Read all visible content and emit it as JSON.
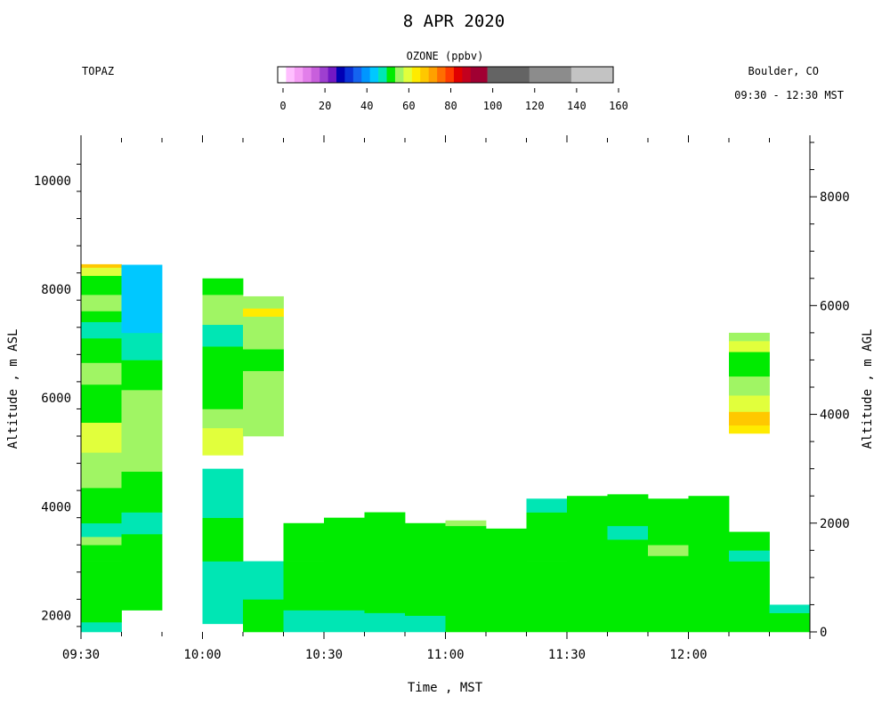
{
  "chart_data": {
    "type": "heatmap",
    "title": "8 APR 2020",
    "instrument": "TOPAZ",
    "location": "Boulder, CO",
    "time_range_label": "09:30 - 12:30 MST",
    "colorbar": {
      "label": "OZONE (ppbv)",
      "range": [
        0,
        160
      ],
      "tick_values": [
        0,
        20,
        40,
        60,
        80,
        100,
        120,
        140,
        160
      ],
      "tick_labels": [
        "0",
        "20",
        "40",
        "60",
        "80",
        "100",
        "120",
        "140",
        "160"
      ],
      "bins": [
        {
          "lo": 0,
          "hi": 4,
          "color": "#ffffff"
        },
        {
          "lo": 4,
          "hi": 8,
          "color": "#ffbfff"
        },
        {
          "lo": 8,
          "hi": 12,
          "color": "#f59ef5"
        },
        {
          "lo": 12,
          "hi": 16,
          "color": "#e27fea"
        },
        {
          "lo": 16,
          "hi": 20,
          "color": "#c85fdc"
        },
        {
          "lo": 20,
          "hi": 24,
          "color": "#9e3fd0"
        },
        {
          "lo": 24,
          "hi": 28,
          "color": "#7218c4"
        },
        {
          "lo": 28,
          "hi": 32,
          "color": "#0000b4"
        },
        {
          "lo": 32,
          "hi": 36,
          "color": "#0a32d8"
        },
        {
          "lo": 36,
          "hi": 40,
          "color": "#1464f0"
        },
        {
          "lo": 40,
          "hi": 44,
          "color": "#0096ff"
        },
        {
          "lo": 44,
          "hi": 48,
          "color": "#00c8ff"
        },
        {
          "lo": 48,
          "hi": 52,
          "color": "#00e6b4"
        },
        {
          "lo": 52,
          "hi": 56,
          "color": "#00eb00"
        },
        {
          "lo": 56,
          "hi": 60,
          "color": "#a0f564"
        },
        {
          "lo": 60,
          "hi": 64,
          "color": "#e1ff3c"
        },
        {
          "lo": 64,
          "hi": 68,
          "color": "#ffeb00"
        },
        {
          "lo": 68,
          "hi": 72,
          "color": "#ffc800"
        },
        {
          "lo": 72,
          "hi": 76,
          "color": "#ffa000"
        },
        {
          "lo": 76,
          "hi": 80,
          "color": "#ff6e00"
        },
        {
          "lo": 80,
          "hi": 84,
          "color": "#ff3c00"
        },
        {
          "lo": 84,
          "hi": 88,
          "color": "#e10000"
        },
        {
          "lo": 88,
          "hi": 92,
          "color": "#c3001e"
        },
        {
          "lo": 92,
          "hi": 100,
          "color": "#a00032"
        },
        {
          "lo": 100,
          "hi": 120,
          "color": "#646464"
        },
        {
          "lo": 120,
          "hi": 140,
          "color": "#8c8c8c"
        },
        {
          "lo": 140,
          "hi": 160,
          "color": "#c3c3c3"
        }
      ]
    },
    "xlabel": "Time , MST",
    "ylabel_left": "Altitude , m ASL",
    "ylabel_right": "Altitude , m AGL",
    "xlim": [
      "09:30",
      "12:30"
    ],
    "ylim_left": [
      1700,
      10700
    ],
    "ylim_right": [
      0,
      9000
    ],
    "x_ticks": [
      "09:30",
      "10:00",
      "10:30",
      "11:00",
      "11:30",
      "12:00"
    ],
    "y_ticks_left": [
      2000,
      4000,
      6000,
      8000,
      10000
    ],
    "y_ticks_right": [
      0,
      2000,
      4000,
      6000,
      8000
    ],
    "columns": [
      {
        "start": "09:30",
        "end": "09:40",
        "segments": [
          {
            "bottom": 1700,
            "top": 1880,
            "ozone": 50
          },
          {
            "bottom": 1880,
            "top": 2200,
            "ozone": 54
          },
          {
            "bottom": 2200,
            "top": 3000,
            "ozone": 54
          },
          {
            "bottom": 3000,
            "top": 3300,
            "ozone": 54
          },
          {
            "bottom": 3300,
            "top": 3450,
            "ozone": 57
          },
          {
            "bottom": 3450,
            "top": 3700,
            "ozone": 50
          },
          {
            "bottom": 3700,
            "top": 4350,
            "ozone": 54
          },
          {
            "bottom": 4350,
            "top": 5000,
            "ozone": 57
          },
          {
            "bottom": 5000,
            "top": 5550,
            "ozone": 61
          },
          {
            "bottom": 5550,
            "top": 6250,
            "ozone": 54
          },
          {
            "bottom": 6250,
            "top": 6650,
            "ozone": 57
          },
          {
            "bottom": 6650,
            "top": 7100,
            "ozone": 54
          },
          {
            "bottom": 7100,
            "top": 7400,
            "ozone": 50
          },
          {
            "bottom": 7400,
            "top": 7600,
            "ozone": 54
          },
          {
            "bottom": 7600,
            "top": 7900,
            "ozone": 57
          },
          {
            "bottom": 7900,
            "top": 8250,
            "ozone": 54
          },
          {
            "bottom": 8250,
            "top": 8400,
            "ozone": 62
          },
          {
            "bottom": 8400,
            "top": 8460,
            "ozone": 69
          }
        ]
      },
      {
        "start": "09:40",
        "end": "09:50",
        "segments": [
          {
            "bottom": 2100,
            "top": 2800,
            "ozone": 54
          },
          {
            "bottom": 2800,
            "top": 3500,
            "ozone": 54
          },
          {
            "bottom": 3500,
            "top": 3900,
            "ozone": 50
          },
          {
            "bottom": 3900,
            "top": 4650,
            "ozone": 54
          },
          {
            "bottom": 4650,
            "top": 6150,
            "ozone": 57
          },
          {
            "bottom": 6150,
            "top": 6700,
            "ozone": 54
          },
          {
            "bottom": 6700,
            "top": 7200,
            "ozone": 50
          },
          {
            "bottom": 7200,
            "top": 7600,
            "ozone": 46
          },
          {
            "bottom": 7600,
            "top": 8000,
            "ozone": 45
          },
          {
            "bottom": 8000,
            "top": 8450,
            "ozone": 46
          }
        ]
      },
      {
        "start": "10:00",
        "end": "10:10",
        "segments": [
          {
            "bottom": 1850,
            "top": 3000,
            "ozone": 50
          },
          {
            "bottom": 3000,
            "top": 3800,
            "ozone": 54
          },
          {
            "bottom": 3800,
            "top": 4700,
            "ozone": 50
          },
          {
            "bottom": 4950,
            "top": 5450,
            "ozone": 62
          },
          {
            "bottom": 5450,
            "top": 5800,
            "ozone": 57
          },
          {
            "bottom": 5800,
            "top": 6950,
            "ozone": 54
          },
          {
            "bottom": 6950,
            "top": 7350,
            "ozone": 50
          },
          {
            "bottom": 7350,
            "top": 7900,
            "ozone": 57
          },
          {
            "bottom": 7900,
            "top": 8200,
            "ozone": 54
          }
        ]
      },
      {
        "start": "10:10",
        "end": "10:20",
        "segments": [
          {
            "bottom": 1700,
            "top": 2300,
            "ozone": 54
          },
          {
            "bottom": 2300,
            "top": 3000,
            "ozone": 50
          },
          {
            "bottom": 5300,
            "top": 5800,
            "ozone": 57
          },
          {
            "bottom": 5800,
            "top": 6500,
            "ozone": 57
          },
          {
            "bottom": 6500,
            "top": 6900,
            "ozone": 54
          },
          {
            "bottom": 6900,
            "top": 7500,
            "ozone": 57
          },
          {
            "bottom": 7500,
            "top": 7650,
            "ozone": 64
          },
          {
            "bottom": 7650,
            "top": 7870,
            "ozone": 57
          }
        ]
      },
      {
        "start": "10:20",
        "end": "10:30",
        "segments": [
          {
            "bottom": 1700,
            "top": 2100,
            "ozone": 50
          },
          {
            "bottom": 2100,
            "top": 3000,
            "ozone": 54
          },
          {
            "bottom": 3000,
            "top": 3700,
            "ozone": 54
          }
        ]
      },
      {
        "start": "10:30",
        "end": "10:40",
        "segments": [
          {
            "bottom": 1700,
            "top": 2100,
            "ozone": 50
          },
          {
            "bottom": 2100,
            "top": 3200,
            "ozone": 54
          },
          {
            "bottom": 3200,
            "top": 3800,
            "ozone": 54
          }
        ]
      },
      {
        "start": "10:40",
        "end": "10:50",
        "segments": [
          {
            "bottom": 1700,
            "top": 2050,
            "ozone": 50
          },
          {
            "bottom": 2050,
            "top": 3250,
            "ozone": 54
          },
          {
            "bottom": 3250,
            "top": 3900,
            "ozone": 54
          }
        ]
      },
      {
        "start": "10:50",
        "end": "11:00",
        "segments": [
          {
            "bottom": 1700,
            "top": 2000,
            "ozone": 50
          },
          {
            "bottom": 2000,
            "top": 3100,
            "ozone": 54
          },
          {
            "bottom": 3100,
            "top": 3700,
            "ozone": 54
          }
        ]
      },
      {
        "start": "11:00",
        "end": "11:10",
        "segments": [
          {
            "bottom": 1700,
            "top": 2300,
            "ozone": 54
          },
          {
            "bottom": 2300,
            "top": 3650,
            "ozone": 54
          },
          {
            "bottom": 3650,
            "top": 3750,
            "ozone": 57
          }
        ]
      },
      {
        "start": "11:10",
        "end": "11:20",
        "segments": [
          {
            "bottom": 1700,
            "top": 3600,
            "ozone": 54
          }
        ]
      },
      {
        "start": "11:20",
        "end": "11:30",
        "segments": [
          {
            "bottom": 1700,
            "top": 3000,
            "ozone": 54
          },
          {
            "bottom": 3000,
            "top": 3900,
            "ozone": 54
          },
          {
            "bottom": 3900,
            "top": 4150,
            "ozone": 50
          }
        ]
      },
      {
        "start": "11:30",
        "end": "11:40",
        "segments": [
          {
            "bottom": 1700,
            "top": 2400,
            "ozone": 54
          },
          {
            "bottom": 2400,
            "top": 4200,
            "ozone": 54
          }
        ]
      },
      {
        "start": "11:40",
        "end": "11:50",
        "segments": [
          {
            "bottom": 1700,
            "top": 2300,
            "ozone": 54
          },
          {
            "bottom": 2300,
            "top": 3400,
            "ozone": 54
          },
          {
            "bottom": 3400,
            "top": 3650,
            "ozone": 50
          },
          {
            "bottom": 3650,
            "top": 4230,
            "ozone": 54
          }
        ]
      },
      {
        "start": "11:50",
        "end": "12:00",
        "segments": [
          {
            "bottom": 1700,
            "top": 3100,
            "ozone": 54
          },
          {
            "bottom": 3100,
            "top": 3300,
            "ozone": 57
          },
          {
            "bottom": 3300,
            "top": 4150,
            "ozone": 54
          }
        ]
      },
      {
        "start": "12:00",
        "end": "12:10",
        "segments": [
          {
            "bottom": 1700,
            "top": 2400,
            "ozone": 54
          },
          {
            "bottom": 2400,
            "top": 4200,
            "ozone": 54
          }
        ]
      },
      {
        "start": "12:10",
        "end": "12:20",
        "segments": [
          {
            "bottom": 1700,
            "top": 3000,
            "ozone": 54
          },
          {
            "bottom": 3000,
            "top": 3200,
            "ozone": 50
          },
          {
            "bottom": 3200,
            "top": 3540,
            "ozone": 54
          },
          {
            "bottom": 5350,
            "top": 5500,
            "ozone": 66
          },
          {
            "bottom": 5500,
            "top": 5750,
            "ozone": 70
          },
          {
            "bottom": 5750,
            "top": 6050,
            "ozone": 62
          },
          {
            "bottom": 6050,
            "top": 6400,
            "ozone": 57
          },
          {
            "bottom": 6400,
            "top": 6850,
            "ozone": 54
          },
          {
            "bottom": 6850,
            "top": 7050,
            "ozone": 62
          },
          {
            "bottom": 7050,
            "top": 7200,
            "ozone": 57
          }
        ]
      },
      {
        "start": "12:20",
        "end": "12:30",
        "segments": [
          {
            "bottom": 1700,
            "top": 2050,
            "ozone": 54
          },
          {
            "bottom": 2050,
            "top": 2200,
            "ozone": 50
          }
        ]
      }
    ]
  }
}
